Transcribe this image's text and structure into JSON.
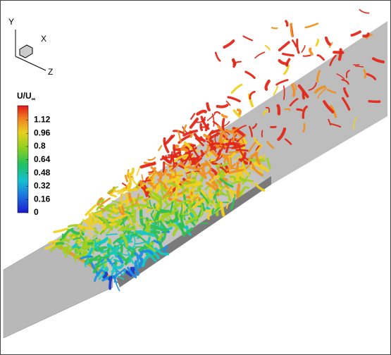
{
  "axes": {
    "y": "Y",
    "x": "X",
    "z": "Z"
  },
  "legend": {
    "title": {
      "text": "U/U",
      "subscript": "∞"
    },
    "levels": [
      1.12,
      0.96,
      0.8,
      0.64,
      0.48,
      0.32,
      0.16,
      0
    ]
  }
}
